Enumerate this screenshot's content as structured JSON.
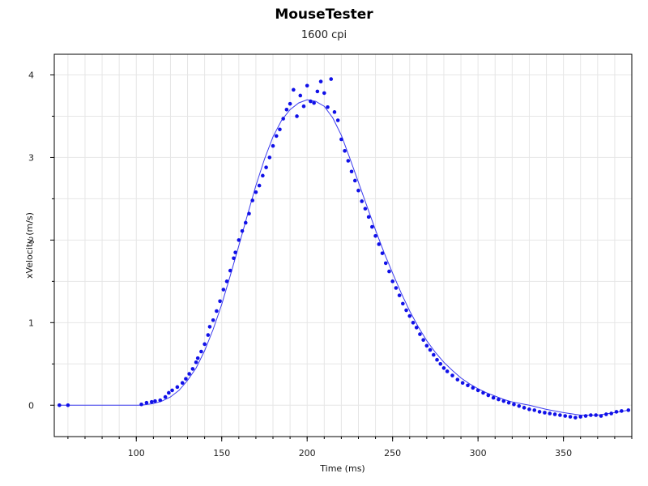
{
  "chart_data": {
    "type": "scatter",
    "title": "MouseTester",
    "subtitle": "1600 cpi",
    "xlabel": "Time (ms)",
    "ylabel": "xVelocity (m/s)",
    "xlim": [
      52,
      390
    ],
    "ylim": [
      -0.38,
      4.25
    ],
    "x_ticks": [
      100,
      150,
      200,
      250,
      300,
      350
    ],
    "y_ticks": [
      0,
      1,
      2,
      3,
      4
    ],
    "grid": true,
    "colors": {
      "points": "#1010e8",
      "line": "#3a3aee",
      "grid": "#e6e6e6",
      "axis": "#000000"
    },
    "series": [
      {
        "kind": "points",
        "x": [
          55,
          60,
          103,
          106,
          109,
          111,
          114,
          117,
          119,
          121,
          124,
          127,
          129,
          131,
          133,
          135,
          136,
          138,
          140,
          142,
          143,
          145,
          147,
          149,
          151,
          153,
          155,
          157,
          158,
          160,
          162,
          164,
          166,
          168,
          170,
          172,
          174,
          176,
          178,
          180,
          182,
          184,
          186,
          188,
          190,
          192,
          194,
          196,
          198,
          200,
          202,
          204,
          206,
          208,
          210,
          212,
          214,
          216,
          218,
          220,
          222,
          224,
          226,
          228,
          230,
          232,
          234,
          236,
          238,
          240,
          242,
          244,
          246,
          248,
          250,
          252,
          254,
          256,
          258,
          260,
          262,
          264,
          266,
          268,
          270,
          272,
          274,
          276,
          278,
          280,
          282,
          285,
          288,
          291,
          294,
          297,
          300,
          303,
          306,
          309,
          312,
          315,
          318,
          321,
          324,
          327,
          330,
          333,
          336,
          339,
          342,
          345,
          348,
          351,
          354,
          357,
          360,
          363,
          366,
          369,
          372,
          375,
          378,
          381,
          384,
          388
        ],
        "y": [
          0.0,
          0.0,
          0.01,
          0.03,
          0.04,
          0.05,
          0.06,
          0.1,
          0.15,
          0.18,
          0.22,
          0.27,
          0.32,
          0.38,
          0.44,
          0.52,
          0.57,
          0.65,
          0.74,
          0.85,
          0.95,
          1.03,
          1.14,
          1.26,
          1.4,
          1.5,
          1.63,
          1.78,
          1.85,
          2.0,
          2.11,
          2.21,
          2.32,
          2.48,
          2.58,
          2.66,
          2.78,
          2.88,
          3.0,
          3.14,
          3.26,
          3.34,
          3.47,
          3.58,
          3.65,
          3.82,
          3.5,
          3.75,
          3.62,
          3.87,
          3.68,
          3.66,
          3.8,
          3.92,
          3.78,
          3.61,
          3.95,
          3.55,
          3.45,
          3.22,
          3.08,
          2.96,
          2.83,
          2.72,
          2.6,
          2.47,
          2.38,
          2.28,
          2.16,
          2.05,
          1.95,
          1.84,
          1.72,
          1.62,
          1.5,
          1.42,
          1.33,
          1.23,
          1.15,
          1.08,
          1.0,
          0.94,
          0.86,
          0.79,
          0.72,
          0.67,
          0.61,
          0.55,
          0.5,
          0.45,
          0.41,
          0.36,
          0.31,
          0.27,
          0.24,
          0.21,
          0.18,
          0.15,
          0.12,
          0.09,
          0.07,
          0.05,
          0.03,
          0.01,
          -0.01,
          -0.03,
          -0.05,
          -0.06,
          -0.08,
          -0.09,
          -0.1,
          -0.11,
          -0.12,
          -0.13,
          -0.14,
          -0.15,
          -0.14,
          -0.13,
          -0.12,
          -0.12,
          -0.13,
          -0.11,
          -0.1,
          -0.08,
          -0.07,
          -0.06
        ]
      },
      {
        "kind": "line",
        "x": [
          55,
          60,
          103,
          110,
          115,
          120,
          125,
          130,
          135,
          140,
          145,
          150,
          155,
          160,
          165,
          170,
          175,
          180,
          185,
          190,
          195,
          200,
          205,
          210,
          215,
          220,
          225,
          230,
          235,
          240,
          245,
          250,
          255,
          260,
          265,
          270,
          275,
          280,
          285,
          290,
          295,
          300,
          305,
          310,
          315,
          320,
          330,
          340,
          350,
          360,
          370,
          380,
          388
        ],
        "y": [
          0.0,
          0.0,
          0.0,
          0.02,
          0.05,
          0.1,
          0.18,
          0.3,
          0.45,
          0.66,
          0.92,
          1.22,
          1.57,
          1.93,
          2.3,
          2.66,
          2.98,
          3.25,
          3.45,
          3.58,
          3.66,
          3.7,
          3.68,
          3.62,
          3.48,
          3.27,
          2.99,
          2.7,
          2.41,
          2.12,
          1.85,
          1.6,
          1.36,
          1.14,
          0.95,
          0.78,
          0.64,
          0.52,
          0.42,
          0.33,
          0.26,
          0.2,
          0.15,
          0.11,
          0.07,
          0.04,
          0.0,
          -0.05,
          -0.09,
          -0.12,
          -0.12,
          -0.09,
          -0.06
        ]
      }
    ]
  }
}
